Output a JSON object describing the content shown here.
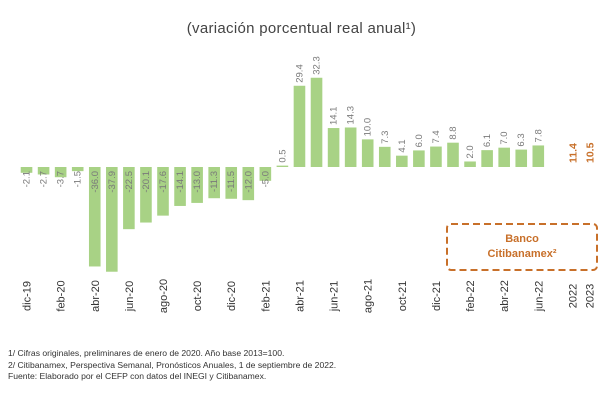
{
  "chart_data": {
    "type": "bar",
    "subtitle": "(variación porcentual real anual¹)",
    "categories": [
      "dic-19",
      "ene-20",
      "feb-20",
      "mar-20",
      "abr-20",
      "may-20",
      "jun-20",
      "jul-20",
      "ago-20",
      "sep-20",
      "oct-20",
      "nov-20",
      "dic-20",
      "ene-21",
      "feb-21",
      "mar-21",
      "abr-21",
      "may-21",
      "jun-21",
      "jul-21",
      "ago-21",
      "sep-21",
      "oct-21",
      "nov-21",
      "dic-21",
      "ene-22",
      "feb-22",
      "mar-22",
      "abr-22",
      "may-22",
      "jun-22",
      "jul-22",
      "2022",
      "2023"
    ],
    "tick_labels": [
      "dic-19",
      "feb-20",
      "abr-20",
      "jun-20",
      "ago-20",
      "oct-20",
      "dic-20",
      "feb-21",
      "abr-21",
      "jun-21",
      "ago-21",
      "oct-21",
      "dic-21",
      "feb-22",
      "abr-22",
      "jun-22",
      "2022",
      "2023"
    ],
    "tick_positions": [
      0,
      2,
      4,
      6,
      8,
      10,
      12,
      14,
      16,
      18,
      20,
      22,
      24,
      26,
      28,
      30,
      32,
      33
    ],
    "values": [
      -2.1,
      -2.7,
      -3.7,
      -1.5,
      -36.0,
      -37.9,
      -22.5,
      -20.1,
      -17.6,
      -14.1,
      -13.0,
      -11.3,
      -11.5,
      -12.0,
      -5.0,
      0.5,
      29.4,
      32.3,
      14.1,
      14.3,
      10.0,
      7.3,
      4.1,
      6.0,
      7.4,
      8.8,
      2.0,
      6.1,
      7.0,
      6.3,
      7.8,
      null,
      11.4,
      10.5
    ],
    "value_labels": [
      "-2.1",
      "-2.7",
      "-3.7",
      "-1.5",
      "-36.0",
      "-37.9",
      "-22.5",
      "-20.1",
      "-17.6",
      "-14.1",
      "-13.0",
      "-11.3",
      "-11.5",
      "-12.0",
      "-5.0",
      "0.5",
      "29.4",
      "32.3",
      "14.1",
      "14.3",
      "10.0",
      "7.3",
      "4.1",
      "6.0",
      "7.4",
      "8.8",
      "2.0",
      "6.1",
      "7.0",
      "6.3",
      "7.8",
      "",
      "11.4",
      "10.5"
    ],
    "forecast_categories": [
      "2022",
      "2023"
    ],
    "ylim": [
      -42,
      38
    ],
    "grid": false,
    "colors": {
      "bars": "#a8d285",
      "forecast": "#c8702a",
      "legend_border": "#c8702a"
    },
    "legend": {
      "text": [
        "Banco",
        "Citibanamex²"
      ],
      "position": "bottom-right",
      "style": "dashed-box"
    }
  },
  "notes": [
    "1/ Cifras originales, preliminares de enero de 2020. Año base 2013=100.",
    "2/ Citibanamex, Perspectiva Semanal, Pronósticos Anuales, 1 de septiembre de 2022.",
    "Fuente: Elaborado por el CEFP con datos del INEGI y Citibanamex."
  ]
}
